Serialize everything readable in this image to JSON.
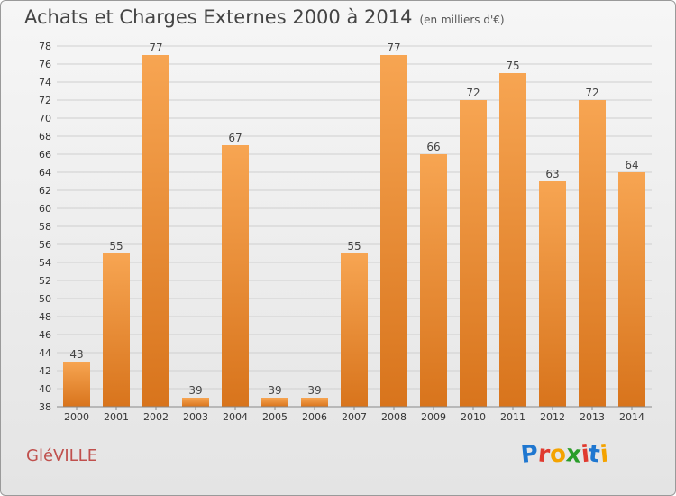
{
  "header": {
    "title": "Achats et Charges Externes 2000 à 2014",
    "subtitle": "(en milliers d'€)"
  },
  "footer": {
    "commune": "GléVILLE",
    "logo": {
      "letters": [
        "P",
        "r",
        "o",
        "x",
        "i",
        "t",
        "i"
      ],
      "colors": [
        "#1f77d0",
        "#e03a2f",
        "#f4a300",
        "#2a9d2a",
        "#e03a2f",
        "#1f77d0",
        "#f4a300"
      ]
    }
  },
  "colors": {
    "bar_top": "#f7a552",
    "bar_bottom": "#d8741c",
    "grid": "#cfcfcf",
    "axis_text": "#333333"
  },
  "chart_data": {
    "type": "bar",
    "categories": [
      "2000",
      "2001",
      "2002",
      "2003",
      "2004",
      "2005",
      "2006",
      "2007",
      "2008",
      "2009",
      "2010",
      "2011",
      "2012",
      "2013",
      "2014"
    ],
    "values": [
      43,
      55,
      77,
      39,
      67,
      39,
      39,
      55,
      77,
      66,
      72,
      75,
      63,
      72,
      64
    ],
    "data_labels": [
      "43",
      "55",
      "77",
      "39",
      "67",
      "39",
      "39",
      "55",
      "77",
      "66",
      "72",
      "75",
      "63",
      "72",
      "64"
    ],
    "yticks": [
      "38",
      "40",
      "42",
      "44",
      "46",
      "48",
      "50",
      "52",
      "54",
      "56",
      "58",
      "60",
      "62",
      "64",
      "66",
      "68",
      "70",
      "72",
      "74",
      "76",
      "78"
    ],
    "ylim": [
      38,
      78
    ],
    "grid": true,
    "legend": "none"
  }
}
